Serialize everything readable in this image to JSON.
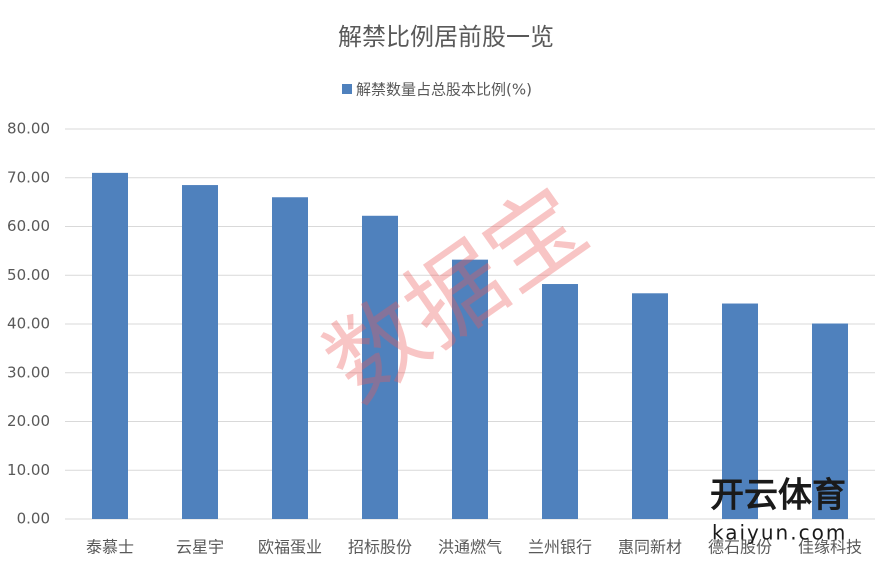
{
  "chart_data": {
    "type": "bar",
    "title": "解禁比例居前股一览",
    "categories": [
      "泰慕士",
      "云星宇",
      "欧福蛋业",
      "招标股份",
      "洪通燃气",
      "兰州银行",
      "惠同新材",
      "德石股份",
      "佳缘科技"
    ],
    "series": [
      {
        "name": "解禁数量占总股本比例(%)",
        "color": "#4f81bd",
        "values": [
          71.0,
          68.5,
          66.0,
          62.2,
          53.2,
          48.2,
          46.3,
          44.2,
          40.1
        ]
      }
    ],
    "ylim": [
      0,
      80
    ],
    "yticks": [
      {
        "value": 0,
        "label": "0.00"
      },
      {
        "value": 10,
        "label": "10.00"
      },
      {
        "value": 20,
        "label": "20.00"
      },
      {
        "value": 30,
        "label": "30.00"
      },
      {
        "value": 40,
        "label": "40.00"
      },
      {
        "value": 50,
        "label": "50.00"
      },
      {
        "value": 60,
        "label": "60.00"
      },
      {
        "value": 70,
        "label": "70.00"
      },
      {
        "value": 80,
        "label": "80.00"
      }
    ],
    "grid": true,
    "legend": "top"
  },
  "watermarks": [
    "数据宝",
    "开云体育",
    "kaiyun.com"
  ]
}
